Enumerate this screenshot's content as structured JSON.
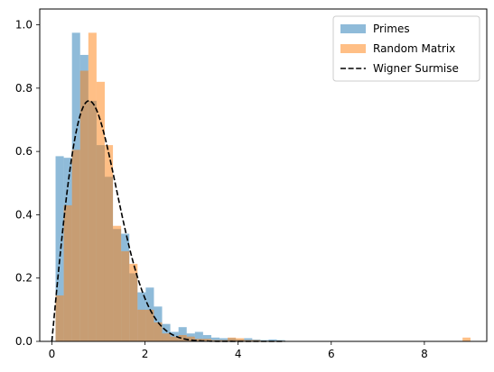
{
  "chart_data": {
    "type": "histogram",
    "title": "",
    "xlabel": "",
    "ylabel": "",
    "xlim": [
      -0.26,
      9.34
    ],
    "ylim": [
      0,
      1.05
    ],
    "grid": false,
    "legend_position": "top-right",
    "xticks": [
      {
        "value": 0,
        "label": "0"
      },
      {
        "value": 2,
        "label": "2"
      },
      {
        "value": 4,
        "label": "4"
      },
      {
        "value": 6,
        "label": "6"
      },
      {
        "value": 8,
        "label": "8"
      }
    ],
    "yticks": [
      {
        "value": 0.0,
        "label": "0.0"
      },
      {
        "value": 0.2,
        "label": "0.2"
      },
      {
        "value": 0.4,
        "label": "0.4"
      },
      {
        "value": 0.6,
        "label": "0.6"
      },
      {
        "value": 0.8,
        "label": "0.8"
      },
      {
        "value": 1.0,
        "label": "1.0"
      }
    ],
    "series": [
      {
        "name": "Primes",
        "kind": "histogram",
        "color": "#1f77b4",
        "alpha": 0.5,
        "bin_edges": [
          0.08,
          0.256,
          0.432,
          0.608,
          0.784,
          0.96,
          1.136,
          1.312,
          1.488,
          1.664,
          1.84,
          2.016,
          2.192,
          2.368,
          2.544,
          2.72,
          2.896,
          3.072,
          3.248,
          3.424,
          3.6,
          3.776,
          3.952,
          4.128,
          4.304,
          4.48,
          4.656,
          4.832,
          5.008
        ],
        "values": [
          0.585,
          0.58,
          0.975,
          0.905,
          0.76,
          0.62,
          0.52,
          0.355,
          0.34,
          0.215,
          0.155,
          0.17,
          0.11,
          0.055,
          0.03,
          0.045,
          0.025,
          0.03,
          0.02,
          0.012,
          0.01,
          0.01,
          0.006,
          0.01,
          0.006,
          0.004,
          0.006,
          0.004
        ]
      },
      {
        "name": "Random Matrix",
        "kind": "histogram",
        "color": "#ff7f0e",
        "alpha": 0.5,
        "bin_edges": [
          0.08,
          0.256,
          0.432,
          0.608,
          0.784,
          0.96,
          1.136,
          1.312,
          1.488,
          1.664,
          1.84,
          2.016,
          2.192,
          2.368,
          2.544,
          2.72,
          2.896,
          3.072,
          3.248,
          3.424,
          3.6,
          3.776,
          3.952,
          4.128,
          4.304,
          4.48,
          4.656,
          4.832,
          5.008
        ],
        "values": [
          0.145,
          0.43,
          0.605,
          0.855,
          0.975,
          0.82,
          0.62,
          0.365,
          0.285,
          0.245,
          0.1,
          0.1,
          0.06,
          0.025,
          0.015,
          0.02,
          0.015,
          0.008,
          0.008,
          0.004,
          0.004,
          0.012,
          0.01,
          0.004,
          0.004,
          0.002,
          0.002,
          0.002
        ],
        "extra_bars": [
          {
            "x0": 8.82,
            "x1": 8.99,
            "value": 0.012
          }
        ]
      },
      {
        "name": "Wigner Surmise",
        "kind": "line",
        "color": "#000000",
        "dash": "dashed",
        "formula": "(pi/2) * s * exp(-pi * s^2 / 4)",
        "x_range": [
          0,
          5
        ]
      }
    ]
  }
}
